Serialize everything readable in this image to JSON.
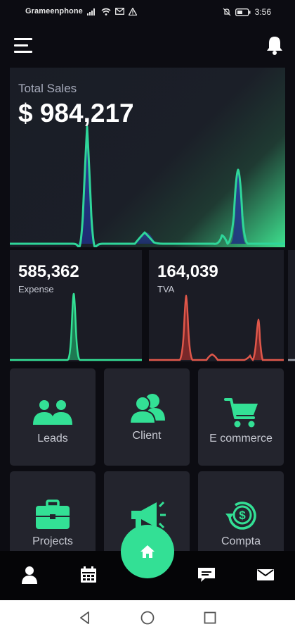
{
  "status_bar": {
    "carrier": "Grameenphone",
    "time": "3:56"
  },
  "header": {
    "menu_icon": "hamburger-menu-icon",
    "notification_icon": "bell-icon"
  },
  "total_sales": {
    "label": "Total Sales",
    "value": "$ 984,217"
  },
  "expense": {
    "value": "585,362",
    "label": "Expense"
  },
  "tva": {
    "value": "164,039",
    "label": "TVA"
  },
  "tiles": [
    {
      "label": "Leads",
      "icon": "users-group-icon"
    },
    {
      "label": "Client",
      "icon": "clients-icon"
    },
    {
      "label": "E commerce",
      "icon": "shopping-cart-icon"
    },
    {
      "label": "Projects",
      "icon": "briefcase-icon"
    },
    {
      "label": "",
      "icon": "megaphone-icon"
    },
    {
      "label": "Compta",
      "icon": "dollar-refresh-icon"
    }
  ],
  "bottom_nav": {
    "items": [
      "user-icon",
      "calendar-icon",
      "home-icon",
      "chat-icon",
      "mail-icon"
    ]
  },
  "colors": {
    "accent": "#33e095",
    "sales_line": "#2fd69a",
    "tva_line": "#e0574a",
    "card_bg": "#1b1c25",
    "tile_bg": "#23242d"
  }
}
